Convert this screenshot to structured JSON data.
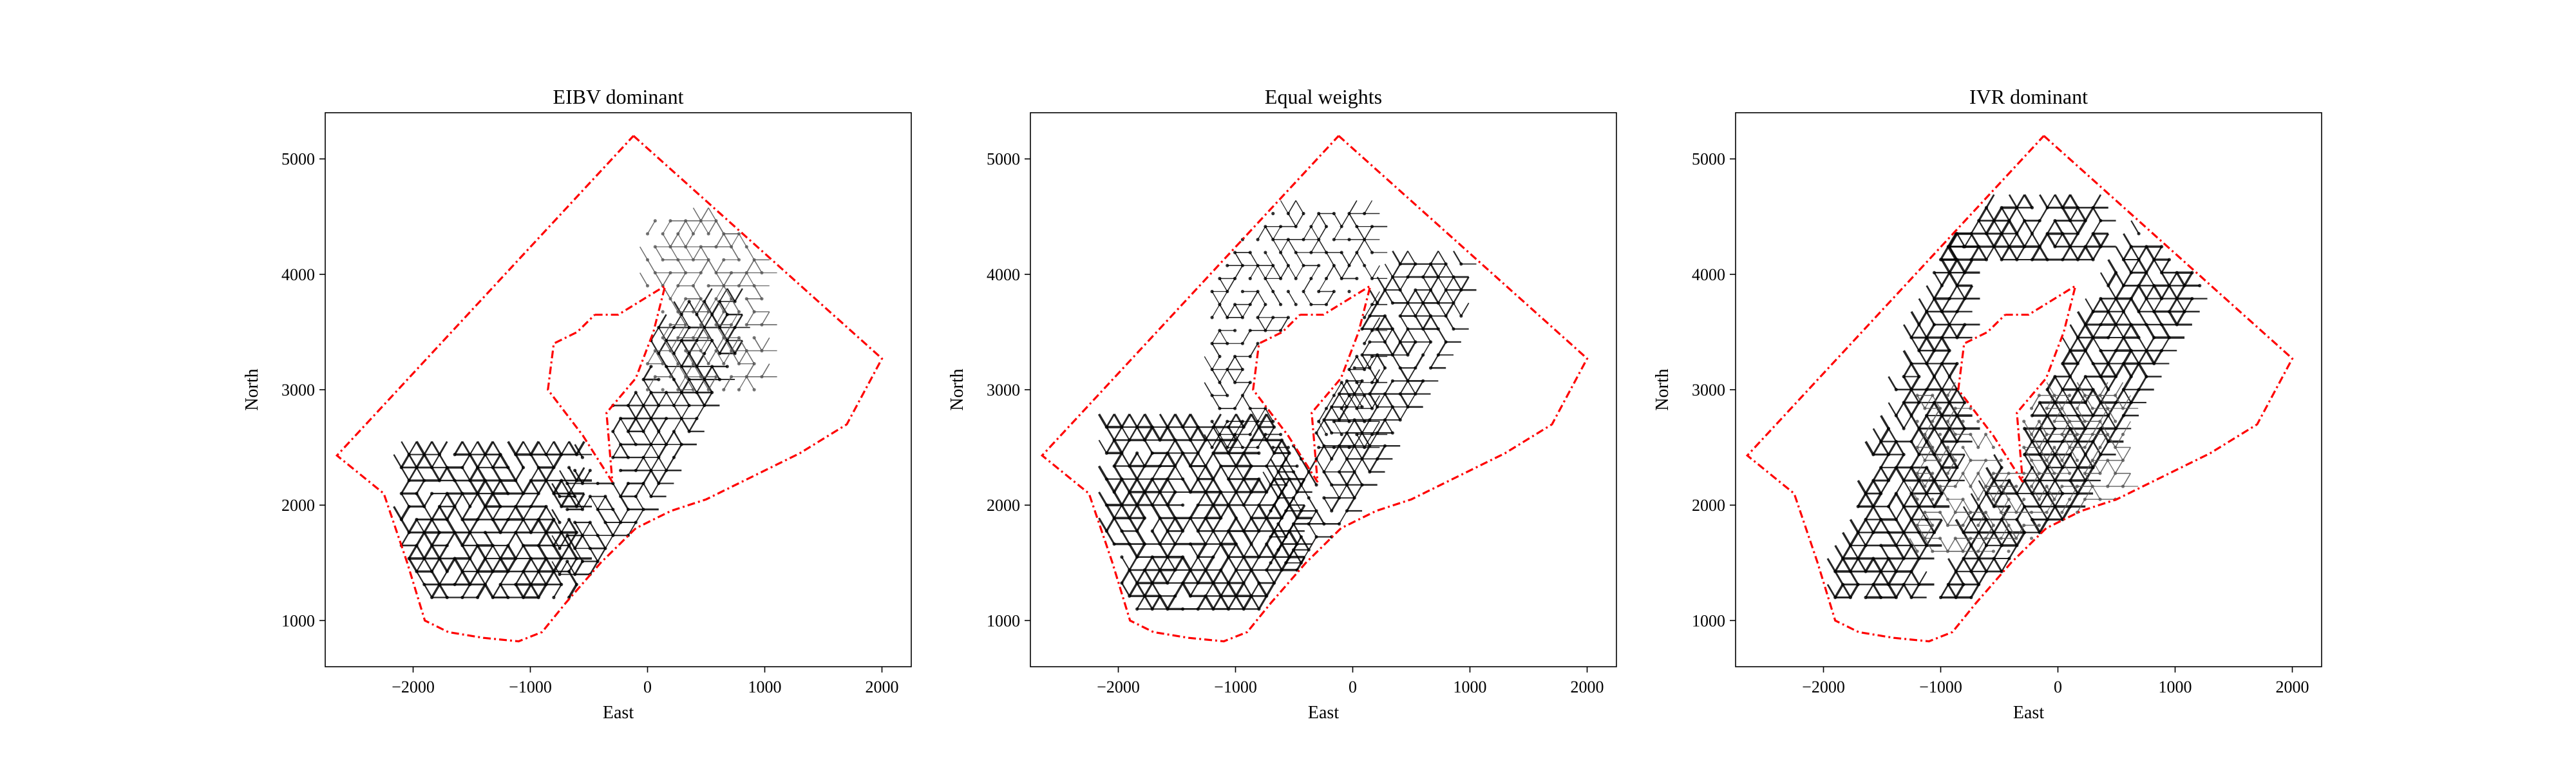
{
  "chart_data": [
    {
      "type": "scatter",
      "title": "EIBV dominant",
      "xlabel": "East",
      "ylabel": "North",
      "xlim": [
        -2750,
        2250
      ],
      "ylim": [
        600,
        5400
      ],
      "xticks": [
        "−2000",
        "−1000",
        "0",
        "1000",
        "2000"
      ],
      "xtick_values": [
        -2000,
        -1000,
        0,
        1000,
        2000
      ],
      "yticks": [
        "1000",
        "2000",
        "3000",
        "4000",
        "5000"
      ],
      "ytick_values": [
        1000,
        2000,
        3000,
        4000,
        5000
      ],
      "grid": false,
      "series": [
        {
          "role": "boundary",
          "color": "#ff0000",
          "style": "dash-dot",
          "x": [
            -120,
            2000,
            1700,
            1300,
            900,
            500,
            200,
            -100,
            -400,
            -700,
            -900,
            -1100,
            -1400,
            -1700,
            -1900,
            -2050,
            -2250,
            -2650,
            -120
          ],
          "y": [
            5200,
            3270,
            2700,
            2450,
            2250,
            2050,
            1950,
            1800,
            1500,
            1150,
            900,
            820,
            850,
            900,
            1000,
            1500,
            2100,
            2430,
            5200
          ]
        },
        {
          "role": "obstacle",
          "color": "#ff0000",
          "style": "dash-dot",
          "x": [
            -450,
            -250,
            150,
            50,
            -100,
            -350,
            -300,
            -550,
            -850,
            -800,
            -600,
            -450
          ],
          "y": [
            3650,
            3650,
            3900,
            3500,
            3100,
            2800,
            2200,
            2600,
            3000,
            3400,
            3500,
            3650
          ]
        },
        {
          "role": "path",
          "color": "#000000",
          "band": "dense",
          "x": [
            -2100,
            -550
          ],
          "y": [
            1200,
            2500
          ],
          "weight": 3
        },
        {
          "role": "path",
          "color": "#000000",
          "band": "diagonal",
          "x": [
            -750,
            700
          ],
          "y": [
            1400,
            3800
          ],
          "weight": 2
        },
        {
          "role": "path",
          "color": "#555555",
          "band": "upper-right",
          "x": [
            0,
            1000
          ],
          "y": [
            3000,
            4500
          ],
          "weight": 1
        }
      ]
    },
    {
      "type": "scatter",
      "title": "Equal weights",
      "xlabel": "East",
      "ylabel": "North",
      "xlim": [
        -2750,
        2250
      ],
      "ylim": [
        600,
        5400
      ],
      "xticks": [
        "−2000",
        "−1000",
        "0",
        "1000",
        "2000"
      ],
      "xtick_values": [
        -2000,
        -1000,
        0,
        1000,
        2000
      ],
      "yticks": [
        "1000",
        "2000",
        "3000",
        "4000",
        "5000"
      ],
      "ytick_values": [
        1000,
        2000,
        3000,
        4000,
        5000
      ],
      "grid": false,
      "series": [
        {
          "role": "boundary",
          "color": "#ff0000",
          "style": "dash-dot",
          "x": [
            -120,
            2000,
            1700,
            1300,
            900,
            500,
            200,
            -100,
            -400,
            -700,
            -900,
            -1100,
            -1400,
            -1700,
            -1900,
            -2050,
            -2250,
            -2650,
            -120
          ],
          "y": [
            5200,
            3270,
            2700,
            2450,
            2250,
            2050,
            1950,
            1800,
            1500,
            1150,
            900,
            820,
            850,
            900,
            1000,
            1500,
            2100,
            2430,
            5200
          ]
        },
        {
          "role": "obstacle",
          "color": "#ff0000",
          "style": "dash-dot",
          "x": [
            -450,
            -250,
            150,
            50,
            -100,
            -350,
            -300,
            -550,
            -850,
            -800,
            -600,
            -450
          ],
          "y": [
            3650,
            3650,
            3900,
            3500,
            3100,
            2800,
            2200,
            2600,
            3000,
            3400,
            3500,
            3650
          ]
        },
        {
          "role": "path",
          "color": "#000000",
          "band": "dense",
          "x": [
            -2100,
            -500
          ],
          "y": [
            1100,
            2700
          ],
          "weight": 3
        },
        {
          "role": "path",
          "color": "#000000",
          "band": "diagonal",
          "x": [
            -700,
            900
          ],
          "y": [
            1500,
            4200
          ],
          "weight": 2
        },
        {
          "role": "path",
          "color": "#000000",
          "band": "upper",
          "x": [
            -1200,
            200
          ],
          "y": [
            2500,
            4600
          ],
          "weight": 1
        }
      ]
    },
    {
      "type": "scatter",
      "title": "IVR dominant",
      "xlabel": "East",
      "ylabel": "North",
      "xlim": [
        -2750,
        2250
      ],
      "ylim": [
        600,
        5400
      ],
      "xticks": [
        "−2000",
        "−1000",
        "0",
        "1000",
        "2000"
      ],
      "xtick_values": [
        -2000,
        -1000,
        0,
        1000,
        2000
      ],
      "yticks": [
        "1000",
        "2000",
        "3000",
        "4000",
        "5000"
      ],
      "ytick_values": [
        1000,
        2000,
        3000,
        4000,
        5000
      ],
      "grid": false,
      "series": [
        {
          "role": "boundary",
          "color": "#ff0000",
          "style": "dash-dot",
          "x": [
            -120,
            2000,
            1700,
            1300,
            900,
            500,
            200,
            -100,
            -400,
            -700,
            -900,
            -1100,
            -1400,
            -1700,
            -1900,
            -2050,
            -2250,
            -2650,
            -120
          ],
          "y": [
            5200,
            3270,
            2700,
            2450,
            2250,
            2050,
            1950,
            1800,
            1500,
            1150,
            900,
            820,
            850,
            900,
            1000,
            1500,
            2100,
            2430,
            5200
          ]
        },
        {
          "role": "obstacle",
          "color": "#ff0000",
          "style": "dash-dot",
          "x": [
            -450,
            -250,
            150,
            50,
            -100,
            -350,
            -300,
            -550,
            -850,
            -800,
            -600,
            -450
          ],
          "y": [
            3650,
            3650,
            3900,
            3500,
            3100,
            2800,
            2200,
            2600,
            3000,
            3400,
            3500,
            3650
          ]
        },
        {
          "role": "path",
          "color": "#000000",
          "band": "loop-left",
          "x": [
            -1900,
            -800
          ],
          "y": [
            1200,
            4600
          ],
          "weight": 3
        },
        {
          "role": "path",
          "color": "#000000",
          "band": "loop-right",
          "x": [
            -1000,
            1600
          ],
          "y": [
            1200,
            4600
          ],
          "weight": 3
        },
        {
          "role": "path",
          "color": "#555555",
          "band": "inner",
          "x": [
            -1200,
            600
          ],
          "y": [
            1600,
            3000
          ],
          "weight": 1
        }
      ]
    }
  ]
}
